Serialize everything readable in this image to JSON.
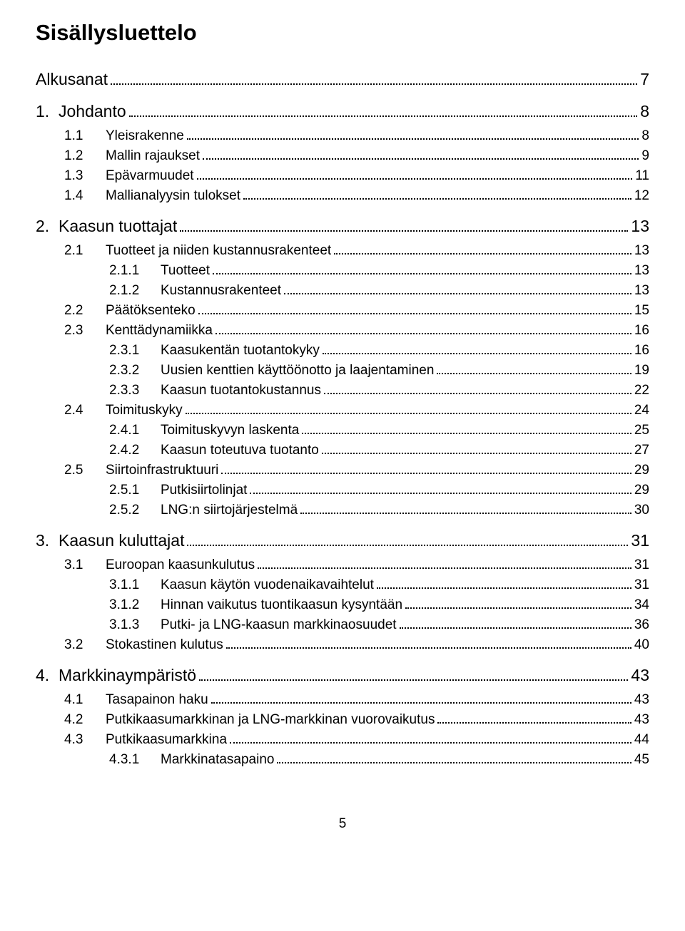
{
  "title": "Sisällysluettelo",
  "page_number": "5",
  "entries": [
    {
      "level": 0,
      "num": "",
      "text": "Alkusanat",
      "page": "7"
    },
    {
      "level": 0,
      "num": "1.",
      "text": "Johdanto",
      "page": "8"
    },
    {
      "level": 1,
      "num": "1.1",
      "text": "Yleisrakenne",
      "page": "8"
    },
    {
      "level": 1,
      "num": "1.2",
      "text": "Mallin rajaukset",
      "page": "9"
    },
    {
      "level": 1,
      "num": "1.3",
      "text": "Epävarmuudet",
      "page": "11"
    },
    {
      "level": 1,
      "num": "1.4",
      "text": "Mallianalyysin tulokset",
      "page": "12"
    },
    {
      "level": 0,
      "num": "2.",
      "text": "Kaasun tuottajat",
      "page": "13"
    },
    {
      "level": 1,
      "num": "2.1",
      "text": "Tuotteet ja niiden kustannusrakenteet",
      "page": "13"
    },
    {
      "level": 2,
      "num": "2.1.1",
      "text": "Tuotteet",
      "page": "13"
    },
    {
      "level": 2,
      "num": "2.1.2",
      "text": "Kustannusrakenteet",
      "page": "13"
    },
    {
      "level": 1,
      "num": "2.2",
      "text": "Päätöksenteko",
      "page": "15"
    },
    {
      "level": 1,
      "num": "2.3",
      "text": "Kenttädynamiikka",
      "page": "16"
    },
    {
      "level": 2,
      "num": "2.3.1",
      "text": "Kaasukentän tuotantokyky",
      "page": "16"
    },
    {
      "level": 2,
      "num": "2.3.2",
      "text": "Uusien kenttien käyttöönotto ja laajentaminen",
      "page": "19"
    },
    {
      "level": 2,
      "num": "2.3.3",
      "text": "Kaasun tuotantokustannus",
      "page": "22"
    },
    {
      "level": 1,
      "num": "2.4",
      "text": "Toimituskyky",
      "page": "24"
    },
    {
      "level": 2,
      "num": "2.4.1",
      "text": "Toimituskyvyn laskenta",
      "page": "25"
    },
    {
      "level": 2,
      "num": "2.4.2",
      "text": "Kaasun toteutuva tuotanto",
      "page": "27"
    },
    {
      "level": 1,
      "num": "2.5",
      "text": "Siirtoinfrastruktuuri",
      "page": "29"
    },
    {
      "level": 2,
      "num": "2.5.1",
      "text": "Putkisiirtolinjat",
      "page": "29"
    },
    {
      "level": 2,
      "num": "2.5.2",
      "text": "LNG:n siirtojärjestelmä",
      "page": "30"
    },
    {
      "level": 0,
      "num": "3.",
      "text": "Kaasun kuluttajat",
      "page": "31"
    },
    {
      "level": 1,
      "num": "3.1",
      "text": "Euroopan kaasunkulutus",
      "page": "31"
    },
    {
      "level": 2,
      "num": "3.1.1",
      "text": "Kaasun käytön vuodenaikavaihtelut",
      "page": "31"
    },
    {
      "level": 2,
      "num": "3.1.2",
      "text": "Hinnan vaikutus tuontikaasun kysyntään",
      "page": "34"
    },
    {
      "level": 2,
      "num": "3.1.3",
      "text": "Putki- ja LNG-kaasun markkinaosuudet",
      "page": "36"
    },
    {
      "level": 1,
      "num": "3.2",
      "text": "Stokastinen kulutus",
      "page": "40"
    },
    {
      "level": 0,
      "num": "4.",
      "text": "Markkinaympäristö",
      "page": "43"
    },
    {
      "level": 1,
      "num": "4.1",
      "text": "Tasapainon haku",
      "page": "43"
    },
    {
      "level": 1,
      "num": "4.2",
      "text": "Putkikaasumarkkinan ja LNG-markkinan vuorovaikutus",
      "page": "43"
    },
    {
      "level": 1,
      "num": "4.3",
      "text": "Putkikaasumarkkina",
      "page": "44"
    },
    {
      "level": 2,
      "num": "4.3.1",
      "text": "Markkinatasapaino",
      "page": "45"
    }
  ]
}
